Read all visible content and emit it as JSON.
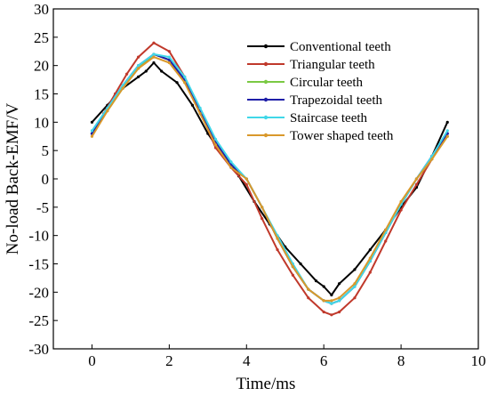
{
  "chart_data": {
    "type": "line",
    "xlabel": "Time/ms",
    "ylabel": "No-load Back-EMF/V",
    "xlim": [
      -1,
      10
    ],
    "ylim": [
      -30,
      30
    ],
    "xticks": [
      0,
      2,
      4,
      6,
      8,
      10
    ],
    "yticks": [
      -30,
      -25,
      -20,
      -15,
      -10,
      -5,
      0,
      5,
      10,
      15,
      20,
      25,
      30
    ],
    "grid": false,
    "legend_position": "top-right",
    "series": [
      {
        "name": "Conventional teeth",
        "color": "#000000",
        "x": [
          0,
          0.4,
          0.8,
          1.2,
          1.4,
          1.6,
          1.8,
          2.2,
          2.6,
          3.0,
          3.4,
          3.8,
          4.2,
          4.6,
          5.0,
          5.4,
          5.8,
          6.0,
          6.2,
          6.4,
          6.8,
          7.2,
          7.6,
          8.0,
          8.4,
          8.8,
          9.2
        ],
        "y": [
          10,
          13,
          16,
          18,
          19,
          20.5,
          19,
          17,
          13,
          8,
          4,
          0.5,
          -4,
          -8,
          -12,
          -15,
          -18,
          -19,
          -20.5,
          -18.5,
          -16,
          -12.5,
          -9,
          -5,
          -1.5,
          4,
          10
        ]
      },
      {
        "name": "Triangular teeth",
        "color": "#c0392b",
        "x": [
          0,
          0.3,
          0.6,
          0.9,
          1.2,
          1.6,
          2.0,
          2.4,
          2.8,
          3.2,
          3.6,
          4.0,
          4.4,
          4.8,
          5.2,
          5.6,
          6.0,
          6.2,
          6.4,
          6.8,
          7.2,
          7.6,
          8.0,
          8.4,
          8.8,
          9.2
        ],
        "y": [
          8,
          11.5,
          15,
          18.5,
          21.5,
          24,
          22.5,
          18,
          12,
          5.5,
          2,
          -1,
          -7,
          -12.5,
          -17,
          -21,
          -23.5,
          -24,
          -23.5,
          -21,
          -16.5,
          -11,
          -5.5,
          -1,
          3.5,
          8
        ]
      },
      {
        "name": "Circular teeth",
        "color": "#7ac943",
        "x": [
          0,
          0.4,
          0.8,
          1.2,
          1.6,
          2.0,
          2.4,
          2.8,
          3.2,
          3.6,
          4.0,
          4.4,
          4.8,
          5.2,
          5.6,
          6.0,
          6.2,
          6.4,
          6.8,
          7.2,
          7.6,
          8.0,
          8.4,
          8.8,
          9.2
        ],
        "y": [
          8,
          12,
          16,
          19.5,
          22,
          21,
          17,
          12,
          6,
          2.5,
          0,
          -5,
          -10.5,
          -15.5,
          -19.5,
          -21.5,
          -22,
          -21.5,
          -19,
          -14.5,
          -9.5,
          -4.5,
          0,
          3.5,
          7.5
        ]
      },
      {
        "name": "Trapezoidal teeth",
        "color": "#1f1fa8",
        "x": [
          0,
          0.4,
          0.8,
          1.2,
          1.6,
          2.0,
          2.4,
          2.8,
          3.2,
          3.6,
          4.0,
          4.4,
          4.8,
          5.2,
          5.6,
          6.0,
          6.2,
          6.4,
          6.8,
          7.2,
          7.6,
          8.0,
          8.4,
          8.8,
          9.2
        ],
        "y": [
          8,
          12.5,
          16.5,
          20,
          22,
          21,
          17.5,
          12,
          6.5,
          2.5,
          0,
          -5,
          -10.5,
          -15.5,
          -19.5,
          -21.5,
          -22,
          -21.5,
          -19,
          -14.5,
          -9.5,
          -4.5,
          0,
          4,
          8
        ]
      },
      {
        "name": "Staircase teeth",
        "color": "#40d7e8",
        "x": [
          0,
          0.4,
          0.8,
          1.2,
          1.6,
          2.0,
          2.4,
          2.8,
          3.2,
          3.6,
          4.0,
          4.4,
          4.8,
          5.2,
          5.6,
          6.0,
          6.2,
          6.4,
          6.8,
          7.2,
          7.6,
          8.0,
          8.4,
          8.8,
          9.2
        ],
        "y": [
          8.5,
          12.5,
          16.5,
          20,
          22,
          21.5,
          18,
          12.5,
          7,
          3,
          0,
          -5,
          -10,
          -15,
          -19.5,
          -21.5,
          -22,
          -21.5,
          -19,
          -14.5,
          -9.5,
          -4.5,
          0,
          4,
          8.5
        ]
      },
      {
        "name": "Tower shaped teeth",
        "color": "#d9982b",
        "x": [
          0,
          0.4,
          0.8,
          1.2,
          1.6,
          2.0,
          2.4,
          2.8,
          3.2,
          3.6,
          4.0,
          4.4,
          4.8,
          5.2,
          5.6,
          6.0,
          6.2,
          6.4,
          6.8,
          7.2,
          7.6,
          8.0,
          8.4,
          8.8,
          9.2
        ],
        "y": [
          7.5,
          12,
          16,
          19.5,
          21.5,
          20.5,
          17,
          11.5,
          6,
          2,
          0,
          -5,
          -10.5,
          -15.5,
          -19.5,
          -21.5,
          -21.5,
          -21,
          -18.5,
          -14,
          -9,
          -4,
          0,
          3.5,
          7.5
        ]
      }
    ]
  }
}
